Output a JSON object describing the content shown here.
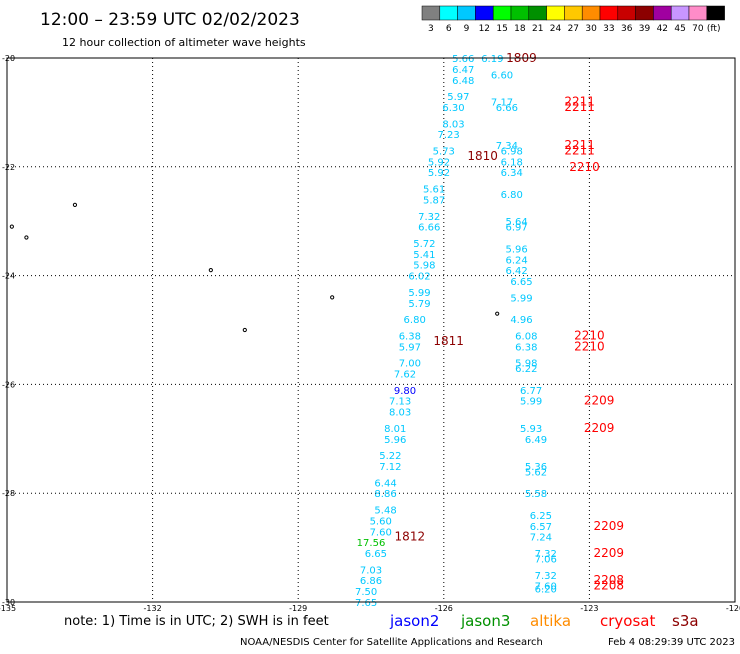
{
  "title": "12:00 – 23:59 UTC 02/02/2023",
  "subtitle": "12 hour collection of altimeter wave heights",
  "scale": {
    "colors": [
      "#808080",
      "#00ffff",
      "#00c8ff",
      "#0000ff",
      "#00ff00",
      "#00c000",
      "#009000",
      "#ffff00",
      "#ffc800",
      "#ff8c00",
      "#ff0000",
      "#c80000",
      "#8c0000",
      "#a000a0",
      "#c896ff",
      "#ff8cc8",
      "#000000"
    ],
    "labels": [
      "3",
      "6",
      "9",
      "12",
      "15",
      "18",
      "21",
      "24",
      "27",
      "30",
      "33",
      "36",
      "39",
      "42",
      "45",
      "70",
      "(ft)"
    ]
  },
  "axes": {
    "lat_ticks": [
      "-20",
      "-22",
      "-24",
      "-26",
      "-28",
      "-30"
    ],
    "lon_ticks": [
      "-135",
      "-132",
      "-129",
      "-126",
      "-123",
      "-120"
    ],
    "lat_range": [
      -30,
      -20
    ],
    "lon_range": [
      -135,
      -120
    ]
  },
  "tracks": [
    {
      "time": "1809",
      "color": "#8c0000",
      "lat": -20.0,
      "lon": -124.4
    },
    {
      "time": "1810",
      "color": "#8c0000",
      "lat": -21.8,
      "lon": -125.2
    },
    {
      "time": "1811",
      "color": "#8c0000",
      "lat": -25.2,
      "lon": -125.9
    },
    {
      "time": "1812",
      "color": "#8c0000",
      "lat": -28.8,
      "lon": -126.7
    },
    {
      "time": "2211",
      "color": "#ff0000",
      "lat": -20.8,
      "lon": -123.2
    },
    {
      "time": "2211",
      "color": "#ff0000",
      "lat": -20.9,
      "lon": -123.2
    },
    {
      "time": "2211",
      "color": "#ff0000",
      "lat": -21.6,
      "lon": -123.2
    },
    {
      "time": "2211",
      "color": "#ff0000",
      "lat": -21.7,
      "lon": -123.2
    },
    {
      "time": "2210",
      "color": "#ff0000",
      "lat": -22.0,
      "lon": -123.1
    },
    {
      "time": "2210",
      "color": "#ff0000",
      "lat": -25.1,
      "lon": -123.0
    },
    {
      "time": "2210",
      "color": "#ff0000",
      "lat": -25.3,
      "lon": -123.0
    },
    {
      "time": "2209",
      "color": "#ff0000",
      "lat": -26.3,
      "lon": -122.8
    },
    {
      "time": "2209",
      "color": "#ff0000",
      "lat": -26.8,
      "lon": -122.8
    },
    {
      "time": "2209",
      "color": "#ff0000",
      "lat": -28.6,
      "lon": -122.6
    },
    {
      "time": "2209",
      "color": "#ff0000",
      "lat": -29.1,
      "lon": -122.6
    },
    {
      "time": "2208",
      "color": "#ff0000",
      "lat": -29.6,
      "lon": -122.6
    },
    {
      "time": "2208",
      "color": "#ff0000",
      "lat": -29.7,
      "lon": -122.6
    }
  ],
  "values": [
    {
      "text": "5.66",
      "color": "#00c8ff",
      "lat": -20.0,
      "lon": -125.6
    },
    {
      "text": "6.19",
      "color": "#00c8ff",
      "lat": -20.0,
      "lon": -125.0
    },
    {
      "text": "6.47",
      "color": "#00c8ff",
      "lat": -20.2,
      "lon": -125.6
    },
    {
      "text": "6.60",
      "color": "#00c8ff",
      "lat": -20.3,
      "lon": -124.8
    },
    {
      "text": "6.48",
      "color": "#00c8ff",
      "lat": -20.4,
      "lon": -125.6
    },
    {
      "text": "5.97",
      "color": "#00c8ff",
      "lat": -20.7,
      "lon": -125.7
    },
    {
      "text": "7.17",
      "color": "#00c8ff",
      "lat": -20.8,
      "lon": -124.8
    },
    {
      "text": "6.30",
      "color": "#00c8ff",
      "lat": -20.9,
      "lon": -125.8
    },
    {
      "text": "6.66",
      "color": "#00c8ff",
      "lat": -20.9,
      "lon": -124.7
    },
    {
      "text": "8.03",
      "color": "#00c8ff",
      "lat": -21.2,
      "lon": -125.8
    },
    {
      "text": "7.23",
      "color": "#00c8ff",
      "lat": -21.4,
      "lon": -125.9
    },
    {
      "text": "7.34",
      "color": "#00c8ff",
      "lat": -21.6,
      "lon": -124.7
    },
    {
      "text": "5.73",
      "color": "#00c8ff",
      "lat": -21.7,
      "lon": -126.0
    },
    {
      "text": "6.98",
      "color": "#00c8ff",
      "lat": -21.7,
      "lon": -124.6
    },
    {
      "text": "6.18",
      "color": "#00c8ff",
      "lat": -21.9,
      "lon": -124.6
    },
    {
      "text": "5.92",
      "color": "#00c8ff",
      "lat": -21.9,
      "lon": -126.1
    },
    {
      "text": "6.34",
      "color": "#00c8ff",
      "lat": -22.1,
      "lon": -124.6
    },
    {
      "text": "5.92",
      "color": "#00c8ff",
      "lat": -22.1,
      "lon": -126.1
    },
    {
      "text": "5.61",
      "color": "#00c8ff",
      "lat": -22.4,
      "lon": -126.2
    },
    {
      "text": "6.80",
      "color": "#00c8ff",
      "lat": -22.5,
      "lon": -124.6
    },
    {
      "text": "5.87",
      "color": "#00c8ff",
      "lat": -22.6,
      "lon": -126.2
    },
    {
      "text": "7.32",
      "color": "#00c8ff",
      "lat": -22.9,
      "lon": -126.3
    },
    {
      "text": "5.64",
      "color": "#00c8ff",
      "lat": -23.0,
      "lon": -124.5
    },
    {
      "text": "6.66",
      "color": "#00c8ff",
      "lat": -23.1,
      "lon": -126.3
    },
    {
      "text": "6.97",
      "color": "#00c8ff",
      "lat": -23.1,
      "lon": -124.5
    },
    {
      "text": "5.72",
      "color": "#00c8ff",
      "lat": -23.4,
      "lon": -126.4
    },
    {
      "text": "5.96",
      "color": "#00c8ff",
      "lat": -23.5,
      "lon": -124.5
    },
    {
      "text": "5.41",
      "color": "#00c8ff",
      "lat": -23.6,
      "lon": -126.4
    },
    {
      "text": "6.24",
      "color": "#00c8ff",
      "lat": -23.7,
      "lon": -124.5
    },
    {
      "text": "5.98",
      "color": "#00c8ff",
      "lat": -23.8,
      "lon": -126.4
    },
    {
      "text": "6.42",
      "color": "#00c8ff",
      "lat": -23.9,
      "lon": -124.5
    },
    {
      "text": "6.02",
      "color": "#00c8ff",
      "lat": -24.0,
      "lon": -126.5
    },
    {
      "text": "6.65",
      "color": "#00c8ff",
      "lat": -24.1,
      "lon": -124.4
    },
    {
      "text": "5.99",
      "color": "#00c8ff",
      "lat": -24.3,
      "lon": -126.5
    },
    {
      "text": "5.99",
      "color": "#00c8ff",
      "lat": -24.4,
      "lon": -124.4
    },
    {
      "text": "5.79",
      "color": "#00c8ff",
      "lat": -24.5,
      "lon": -126.5
    },
    {
      "text": "6.80",
      "color": "#00c8ff",
      "lat": -24.8,
      "lon": -126.6
    },
    {
      "text": "4.96",
      "color": "#00c8ff",
      "lat": -24.8,
      "lon": -124.4
    },
    {
      "text": "6.38",
      "color": "#00c8ff",
      "lat": -25.1,
      "lon": -126.7
    },
    {
      "text": "6.08",
      "color": "#00c8ff",
      "lat": -25.1,
      "lon": -124.3
    },
    {
      "text": "5.97",
      "color": "#00c8ff",
      "lat": -25.3,
      "lon": -126.7
    },
    {
      "text": "6.38",
      "color": "#00c8ff",
      "lat": -25.3,
      "lon": -124.3
    },
    {
      "text": "7.00",
      "color": "#00c8ff",
      "lat": -25.6,
      "lon": -126.7
    },
    {
      "text": "5.98",
      "color": "#00c8ff",
      "lat": -25.6,
      "lon": -124.3
    },
    {
      "text": "6.22",
      "color": "#00c8ff",
      "lat": -25.7,
      "lon": -124.3
    },
    {
      "text": "7.62",
      "color": "#00c8ff",
      "lat": -25.8,
      "lon": -126.8
    },
    {
      "text": "9.80",
      "color": "#0000ff",
      "lat": -26.1,
      "lon": -126.8
    },
    {
      "text": "6.77",
      "color": "#00c8ff",
      "lat": -26.1,
      "lon": -124.2
    },
    {
      "text": "7.13",
      "color": "#00c8ff",
      "lat": -26.3,
      "lon": -126.9
    },
    {
      "text": "5.99",
      "color": "#00c8ff",
      "lat": -26.3,
      "lon": -124.2
    },
    {
      "text": "8.03",
      "color": "#00c8ff",
      "lat": -26.5,
      "lon": -126.9
    },
    {
      "text": "8.01",
      "color": "#00c8ff",
      "lat": -26.8,
      "lon": -127.0
    },
    {
      "text": "5.93",
      "color": "#00c8ff",
      "lat": -26.8,
      "lon": -124.2
    },
    {
      "text": "5.96",
      "color": "#00c8ff",
      "lat": -27.0,
      "lon": -127.0
    },
    {
      "text": "6.49",
      "color": "#00c8ff",
      "lat": -27.0,
      "lon": -124.1
    },
    {
      "text": "5.22",
      "color": "#00c8ff",
      "lat": -27.3,
      "lon": -127.1
    },
    {
      "text": "5.36",
      "color": "#00c8ff",
      "lat": -27.5,
      "lon": -124.1
    },
    {
      "text": "7.12",
      "color": "#00c8ff",
      "lat": -27.5,
      "lon": -127.1
    },
    {
      "text": "5.62",
      "color": "#00c8ff",
      "lat": -27.6,
      "lon": -124.1
    },
    {
      "text": "6.44",
      "color": "#00c8ff",
      "lat": -27.8,
      "lon": -127.2
    },
    {
      "text": "8.86",
      "color": "#00c8ff",
      "lat": -28.0,
      "lon": -127.2
    },
    {
      "text": "5.58",
      "color": "#00c8ff",
      "lat": -28.0,
      "lon": -124.1
    },
    {
      "text": "5.48",
      "color": "#00c8ff",
      "lat": -28.3,
      "lon": -127.2
    },
    {
      "text": "6.25",
      "color": "#00c8ff",
      "lat": -28.4,
      "lon": -124.0
    },
    {
      "text": "5.60",
      "color": "#00c8ff",
      "lat": -28.5,
      "lon": -127.3
    },
    {
      "text": "6.57",
      "color": "#00c8ff",
      "lat": -28.6,
      "lon": -124.0
    },
    {
      "text": "7.60",
      "color": "#00c8ff",
      "lat": -28.7,
      "lon": -127.3
    },
    {
      "text": "7.24",
      "color": "#00c8ff",
      "lat": -28.8,
      "lon": -124.0
    },
    {
      "text": "17.56",
      "color": "#00c000",
      "lat": -28.9,
      "lon": -127.5
    },
    {
      "text": "6.65",
      "color": "#00c8ff",
      "lat": -29.1,
      "lon": -127.4
    },
    {
      "text": "7.32",
      "color": "#00c8ff",
      "lat": -29.1,
      "lon": -123.9
    },
    {
      "text": "7.06",
      "color": "#00c8ff",
      "lat": -29.2,
      "lon": -123.9
    },
    {
      "text": "7.03",
      "color": "#00c8ff",
      "lat": -29.4,
      "lon": -127.5
    },
    {
      "text": "7.32",
      "color": "#00c8ff",
      "lat": -29.5,
      "lon": -123.9
    },
    {
      "text": "6.86",
      "color": "#00c8ff",
      "lat": -29.6,
      "lon": -127.5
    },
    {
      "text": "7.60",
      "color": "#00c8ff",
      "lat": -29.7,
      "lon": -123.9
    },
    {
      "text": "6.20",
      "color": "#00c8ff",
      "lat": -29.75,
      "lon": -123.9
    },
    {
      "text": "7.50",
      "color": "#00c8ff",
      "lat": -29.8,
      "lon": -127.6
    },
    {
      "text": "7.65",
      "color": "#00c8ff",
      "lat": -30.0,
      "lon": -127.6
    }
  ],
  "islands": [
    {
      "lat": -22.7,
      "lon": -133.6
    },
    {
      "lat": -23.1,
      "lon": -134.9
    },
    {
      "lat": -23.3,
      "lon": -134.6
    },
    {
      "lat": -23.9,
      "lon": -130.8
    },
    {
      "lat": -24.4,
      "lon": -128.3
    },
    {
      "lat": -25.0,
      "lon": -130.1
    },
    {
      "lat": -24.7,
      "lon": -124.9
    }
  ],
  "note": "note: 1) Time is in UTC; 2) SWH is in feet",
  "satellites": [
    {
      "name": "jason2",
      "color": "#0000ff"
    },
    {
      "name": "jason3",
      "color": "#009000"
    },
    {
      "name": "altika",
      "color": "#ff8c00"
    },
    {
      "name": "cryosat",
      "color": "#ff0000"
    },
    {
      "name": "s3a",
      "color": "#8c0000"
    }
  ],
  "footer_left": "NOAA/NESDIS Center for Satellite Applications and Research",
  "footer_right": "Feb  4 08:29:39 UTC 2023"
}
